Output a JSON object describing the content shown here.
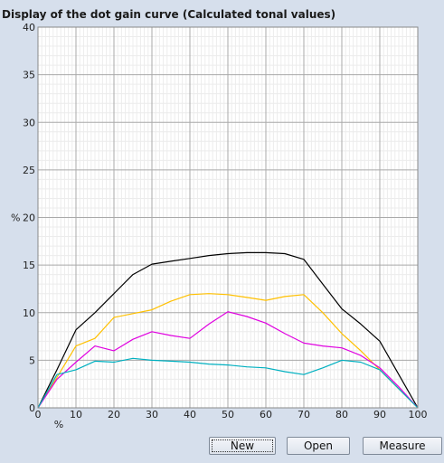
{
  "panel": {
    "title": "Display of the dot gain curve (Calculated tonal values)"
  },
  "buttons": {
    "new_label": "New",
    "open_label": "Open",
    "measure_label": "Measure"
  },
  "chart_data": {
    "type": "line",
    "title": "",
    "xlabel": "%",
    "ylabel": "%",
    "xlim": [
      0,
      100
    ],
    "ylim": [
      0,
      40
    ],
    "x_ticks": [
      0,
      10,
      20,
      30,
      40,
      50,
      60,
      70,
      80,
      90,
      100
    ],
    "y_ticks": [
      0,
      5,
      10,
      15,
      20,
      25,
      30,
      35,
      40
    ],
    "grid": true,
    "minor_grid_step": 1,
    "background": "#ffffff",
    "series": [
      {
        "color": "#000000",
        "x": [
          0,
          5,
          10,
          15,
          20,
          25,
          30,
          35,
          40,
          45,
          50,
          55,
          60,
          65,
          70,
          75,
          80,
          85,
          90,
          95,
          100
        ],
        "y": [
          0,
          4,
          8.2,
          10,
          12,
          14,
          15.1,
          15.4,
          15.7,
          16,
          16.2,
          16.3,
          16.3,
          16.2,
          15.6,
          13,
          10.4,
          8.8,
          7,
          3.5,
          0
        ]
      },
      {
        "color": "#ffc000",
        "x": [
          0,
          5,
          10,
          15,
          20,
          25,
          30,
          35,
          40,
          45,
          50,
          55,
          60,
          65,
          70,
          75,
          80,
          85,
          90,
          95,
          100
        ],
        "y": [
          0,
          3.2,
          6.5,
          7.3,
          9.5,
          9.9,
          10.3,
          11.2,
          11.9,
          12,
          11.9,
          11.6,
          11.3,
          11.7,
          11.9,
          10,
          7.8,
          6,
          4,
          2,
          0
        ]
      },
      {
        "color": "#e000e0",
        "x": [
          0,
          5,
          10,
          15,
          20,
          25,
          30,
          35,
          40,
          45,
          50,
          55,
          60,
          65,
          70,
          75,
          80,
          85,
          90,
          95,
          100
        ],
        "y": [
          0,
          3,
          4.8,
          6.5,
          6,
          7.2,
          8,
          7.6,
          7.3,
          8.8,
          10.1,
          9.6,
          8.9,
          7.8,
          6.8,
          6.5,
          6.3,
          5.5,
          4.2,
          2.2,
          0
        ]
      },
      {
        "color": "#00b0c0",
        "x": [
          0,
          5,
          10,
          15,
          20,
          25,
          30,
          35,
          40,
          45,
          50,
          55,
          60,
          65,
          70,
          75,
          80,
          85,
          90,
          95,
          100
        ],
        "y": [
          0,
          3.5,
          4,
          4.9,
          4.8,
          5.2,
          5,
          4.9,
          4.8,
          4.6,
          4.5,
          4.3,
          4.2,
          3.8,
          3.5,
          4.2,
          5,
          4.8,
          4,
          2,
          0
        ]
      }
    ]
  }
}
